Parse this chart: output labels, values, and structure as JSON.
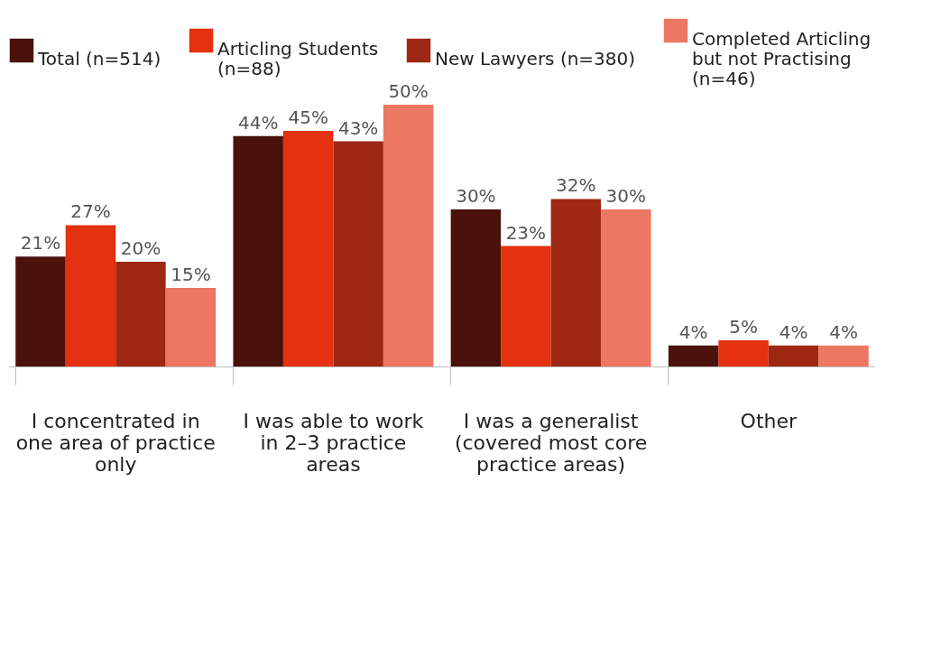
{
  "chart_data": {
    "type": "bar",
    "categories": [
      "I concentrated in one area of practice only",
      "I was able to work in 2–3 practice areas",
      "I was a generalist (covered most core practice areas)",
      "Other"
    ],
    "series": [
      {
        "name": "Total (n=514)",
        "color": "#4a120b",
        "values": [
          21,
          44,
          30,
          4
        ],
        "value_labels": [
          "21%",
          "44%",
          "30%",
          "4%"
        ]
      },
      {
        "name": "Articling Students (n=88)",
        "color": "#e4310f",
        "values": [
          27,
          45,
          23,
          5
        ],
        "value_labels": [
          "27%",
          "45%",
          "23%",
          "5%"
        ]
      },
      {
        "name": "New Lawyers (n=380)",
        "color": "#9f2814",
        "values": [
          20,
          43,
          32,
          4
        ],
        "value_labels": [
          "20%",
          "43%",
          "32%",
          "4%"
        ]
      },
      {
        "name": "Completed Articling but not Practising (n=46)",
        "color": "#ec7763",
        "values": [
          15,
          50,
          30,
          4
        ],
        "value_labels": [
          "15%",
          "50%",
          "30%",
          "4%"
        ]
      }
    ],
    "grid": false,
    "legend": "top"
  }
}
